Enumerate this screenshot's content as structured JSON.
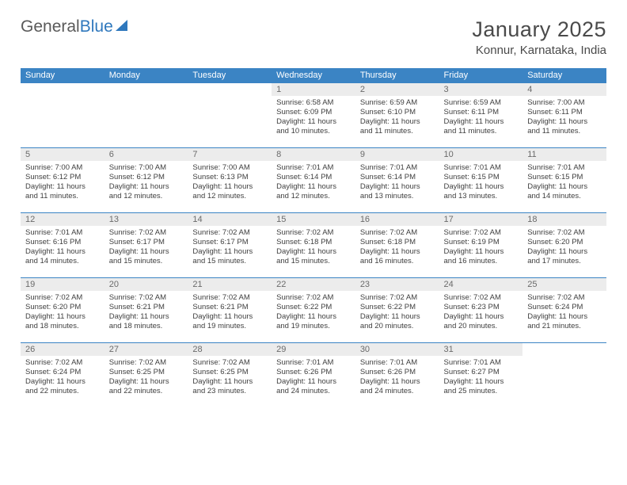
{
  "logo": {
    "word1": "General",
    "word2": "Blue"
  },
  "title": "January 2025",
  "location": "Konnur, Karnataka, India",
  "headers": [
    "Sunday",
    "Monday",
    "Tuesday",
    "Wednesday",
    "Thursday",
    "Friday",
    "Saturday"
  ],
  "colors": {
    "header_bg": "#3b84c4",
    "header_text": "#ffffff",
    "daynum_bg": "#ececec",
    "cell_border": "#3b84c4",
    "body_text": "#3f3f3f",
    "logo_gray": "#5a5a5a",
    "logo_blue": "#2f78bd"
  },
  "weeks": [
    [
      {
        "n": "",
        "t": ""
      },
      {
        "n": "",
        "t": ""
      },
      {
        "n": "",
        "t": ""
      },
      {
        "n": "1",
        "t": "Sunrise: 6:58 AM\nSunset: 6:09 PM\nDaylight: 11 hours and 10 minutes."
      },
      {
        "n": "2",
        "t": "Sunrise: 6:59 AM\nSunset: 6:10 PM\nDaylight: 11 hours and 11 minutes."
      },
      {
        "n": "3",
        "t": "Sunrise: 6:59 AM\nSunset: 6:11 PM\nDaylight: 11 hours and 11 minutes."
      },
      {
        "n": "4",
        "t": "Sunrise: 7:00 AM\nSunset: 6:11 PM\nDaylight: 11 hours and 11 minutes."
      }
    ],
    [
      {
        "n": "5",
        "t": "Sunrise: 7:00 AM\nSunset: 6:12 PM\nDaylight: 11 hours and 11 minutes."
      },
      {
        "n": "6",
        "t": "Sunrise: 7:00 AM\nSunset: 6:12 PM\nDaylight: 11 hours and 12 minutes."
      },
      {
        "n": "7",
        "t": "Sunrise: 7:00 AM\nSunset: 6:13 PM\nDaylight: 11 hours and 12 minutes."
      },
      {
        "n": "8",
        "t": "Sunrise: 7:01 AM\nSunset: 6:14 PM\nDaylight: 11 hours and 12 minutes."
      },
      {
        "n": "9",
        "t": "Sunrise: 7:01 AM\nSunset: 6:14 PM\nDaylight: 11 hours and 13 minutes."
      },
      {
        "n": "10",
        "t": "Sunrise: 7:01 AM\nSunset: 6:15 PM\nDaylight: 11 hours and 13 minutes."
      },
      {
        "n": "11",
        "t": "Sunrise: 7:01 AM\nSunset: 6:15 PM\nDaylight: 11 hours and 14 minutes."
      }
    ],
    [
      {
        "n": "12",
        "t": "Sunrise: 7:01 AM\nSunset: 6:16 PM\nDaylight: 11 hours and 14 minutes."
      },
      {
        "n": "13",
        "t": "Sunrise: 7:02 AM\nSunset: 6:17 PM\nDaylight: 11 hours and 15 minutes."
      },
      {
        "n": "14",
        "t": "Sunrise: 7:02 AM\nSunset: 6:17 PM\nDaylight: 11 hours and 15 minutes."
      },
      {
        "n": "15",
        "t": "Sunrise: 7:02 AM\nSunset: 6:18 PM\nDaylight: 11 hours and 15 minutes."
      },
      {
        "n": "16",
        "t": "Sunrise: 7:02 AM\nSunset: 6:18 PM\nDaylight: 11 hours and 16 minutes."
      },
      {
        "n": "17",
        "t": "Sunrise: 7:02 AM\nSunset: 6:19 PM\nDaylight: 11 hours and 16 minutes."
      },
      {
        "n": "18",
        "t": "Sunrise: 7:02 AM\nSunset: 6:20 PM\nDaylight: 11 hours and 17 minutes."
      }
    ],
    [
      {
        "n": "19",
        "t": "Sunrise: 7:02 AM\nSunset: 6:20 PM\nDaylight: 11 hours and 18 minutes."
      },
      {
        "n": "20",
        "t": "Sunrise: 7:02 AM\nSunset: 6:21 PM\nDaylight: 11 hours and 18 minutes."
      },
      {
        "n": "21",
        "t": "Sunrise: 7:02 AM\nSunset: 6:21 PM\nDaylight: 11 hours and 19 minutes."
      },
      {
        "n": "22",
        "t": "Sunrise: 7:02 AM\nSunset: 6:22 PM\nDaylight: 11 hours and 19 minutes."
      },
      {
        "n": "23",
        "t": "Sunrise: 7:02 AM\nSunset: 6:22 PM\nDaylight: 11 hours and 20 minutes."
      },
      {
        "n": "24",
        "t": "Sunrise: 7:02 AM\nSunset: 6:23 PM\nDaylight: 11 hours and 20 minutes."
      },
      {
        "n": "25",
        "t": "Sunrise: 7:02 AM\nSunset: 6:24 PM\nDaylight: 11 hours and 21 minutes."
      }
    ],
    [
      {
        "n": "26",
        "t": "Sunrise: 7:02 AM\nSunset: 6:24 PM\nDaylight: 11 hours and 22 minutes."
      },
      {
        "n": "27",
        "t": "Sunrise: 7:02 AM\nSunset: 6:25 PM\nDaylight: 11 hours and 22 minutes."
      },
      {
        "n": "28",
        "t": "Sunrise: 7:02 AM\nSunset: 6:25 PM\nDaylight: 11 hours and 23 minutes."
      },
      {
        "n": "29",
        "t": "Sunrise: 7:01 AM\nSunset: 6:26 PM\nDaylight: 11 hours and 24 minutes."
      },
      {
        "n": "30",
        "t": "Sunrise: 7:01 AM\nSunset: 6:26 PM\nDaylight: 11 hours and 24 minutes."
      },
      {
        "n": "31",
        "t": "Sunrise: 7:01 AM\nSunset: 6:27 PM\nDaylight: 11 hours and 25 minutes."
      },
      {
        "n": "",
        "t": ""
      }
    ]
  ]
}
